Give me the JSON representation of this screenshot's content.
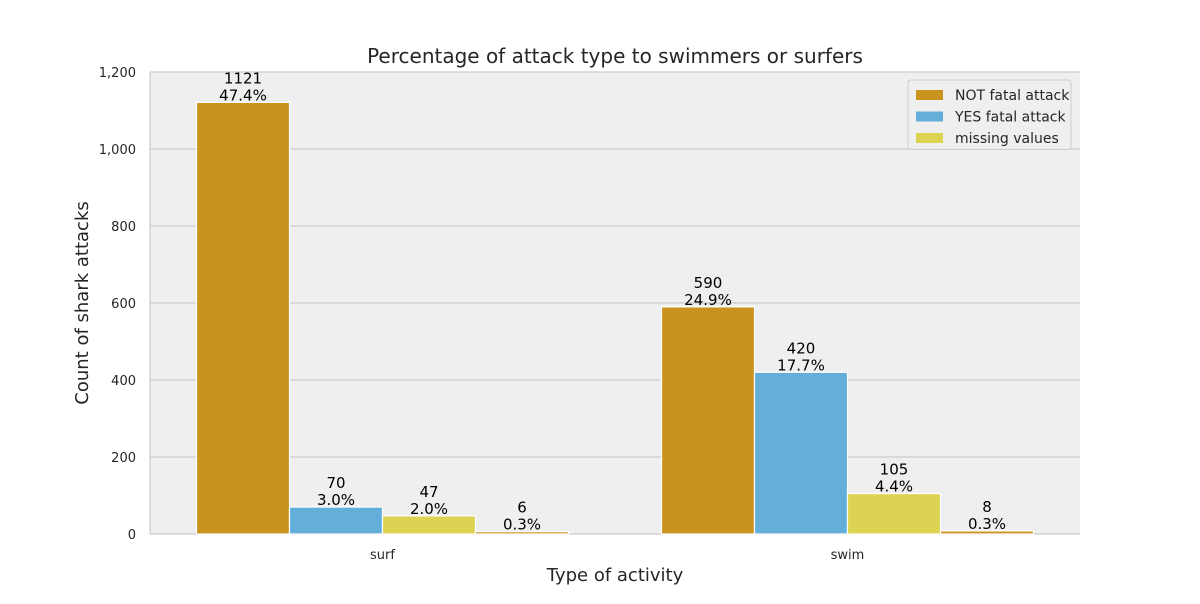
{
  "chart_data": {
    "type": "bar",
    "title": "Percentage of attack type to swimmers or surfers",
    "xlabel": "Type of activity",
    "ylabel": "Count of shark attacks",
    "categories": [
      "surf",
      "swim"
    ],
    "ylim": [
      0,
      1200
    ],
    "yticks": [
      0,
      200,
      400,
      600,
      800,
      1000,
      1200
    ],
    "ytick_labels": [
      "0",
      "200",
      "400",
      "600",
      "800",
      "1,000",
      "1,200"
    ],
    "grid": true,
    "legend_position": "top-right",
    "series": [
      {
        "name": "NOT fatal attack",
        "color": "#C9931E",
        "values": [
          1121,
          590
        ],
        "labels": [
          "47.4%",
          "24.9%"
        ]
      },
      {
        "name": "YES fatal attack",
        "color": "#64AFDA",
        "values": [
          70,
          420
        ],
        "labels": [
          "3.0%",
          "17.7%"
        ]
      },
      {
        "name": "missing values",
        "color": "#DDD352",
        "values": [
          47,
          105
        ],
        "labels": [
          "2.0%",
          "4.4%"
        ]
      },
      {
        "name": "",
        "color": "#C9931E",
        "values": [
          6,
          8
        ],
        "labels": [
          "0.3%",
          "0.3%"
        ],
        "in_legend": false
      }
    ],
    "colors": {
      "plot_background": "#EFEFEF",
      "grid": "#CCCCCC"
    }
  }
}
